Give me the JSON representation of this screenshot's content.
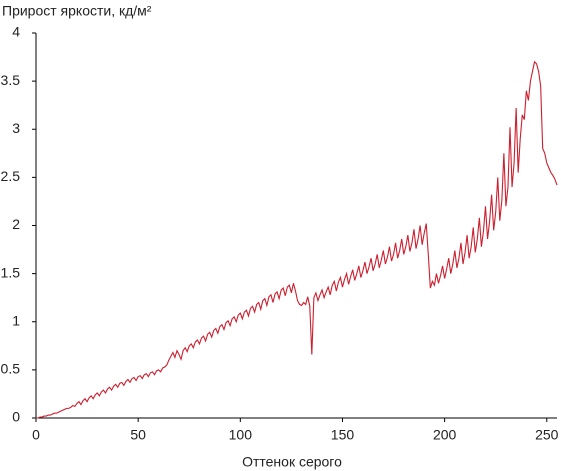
{
  "chart_data": {
    "type": "line",
    "title": "Прирост яркости, кд/м²",
    "x_label": "Оттенок серого",
    "xlim": [
      0,
      255
    ],
    "xticks": [
      0,
      50,
      100,
      150,
      200,
      250
    ],
    "ylim": [
      0,
      4
    ],
    "yticks": [
      0,
      0.5,
      1,
      1.5,
      2,
      2.5,
      3,
      3.5,
      4
    ],
    "grid": false,
    "x": [
      0,
      1,
      2,
      3,
      4,
      5,
      6,
      7,
      8,
      9,
      10,
      11,
      12,
      13,
      14,
      15,
      16,
      17,
      18,
      19,
      20,
      21,
      22,
      23,
      24,
      25,
      26,
      27,
      28,
      29,
      30,
      31,
      32,
      33,
      34,
      35,
      36,
      37,
      38,
      39,
      40,
      41,
      42,
      43,
      44,
      45,
      46,
      47,
      48,
      49,
      50,
      51,
      52,
      53,
      54,
      55,
      56,
      57,
      58,
      59,
      60,
      61,
      62,
      63,
      64,
      65,
      66,
      67,
      68,
      69,
      70,
      71,
      72,
      73,
      74,
      75,
      76,
      77,
      78,
      79,
      80,
      81,
      82,
      83,
      84,
      85,
      86,
      87,
      88,
      89,
      90,
      91,
      92,
      93,
      94,
      95,
      96,
      97,
      98,
      99,
      100,
      101,
      102,
      103,
      104,
      105,
      106,
      107,
      108,
      109,
      110,
      111,
      112,
      113,
      114,
      115,
      116,
      117,
      118,
      119,
      120,
      121,
      122,
      123,
      124,
      125,
      126,
      127,
      128,
      129,
      130,
      131,
      132,
      133,
      134,
      135,
      136,
      137,
      138,
      139,
      140,
      141,
      142,
      143,
      144,
      145,
      146,
      147,
      148,
      149,
      150,
      151,
      152,
      153,
      154,
      155,
      156,
      157,
      158,
      159,
      160,
      161,
      162,
      163,
      164,
      165,
      166,
      167,
      168,
      169,
      170,
      171,
      172,
      173,
      174,
      175,
      176,
      177,
      178,
      179,
      180,
      181,
      182,
      183,
      184,
      185,
      186,
      187,
      188,
      189,
      190,
      191,
      192,
      193,
      194,
      195,
      196,
      197,
      198,
      199,
      200,
      201,
      202,
      203,
      204,
      205,
      206,
      207,
      208,
      209,
      210,
      211,
      212,
      213,
      214,
      215,
      216,
      217,
      218,
      219,
      220,
      221,
      222,
      223,
      224,
      225,
      226,
      227,
      228,
      229,
      230,
      231,
      232,
      233,
      234,
      235,
      236,
      237,
      238,
      239,
      240,
      241,
      242,
      243,
      244,
      245,
      246,
      247,
      248,
      249,
      250,
      251,
      252,
      253,
      254,
      255
    ],
    "series": [
      {
        "color": "#cc1f2f",
        "values": [
          0,
          0,
          0.01,
          0.01,
          0.02,
          0.02,
          0.03,
          0.03,
          0.04,
          0.05,
          0.05,
          0.06,
          0.07,
          0.08,
          0.09,
          0.1,
          0.1,
          0.11,
          0.13,
          0.12,
          0.15,
          0.17,
          0.14,
          0.18,
          0.2,
          0.17,
          0.21,
          0.23,
          0.2,
          0.24,
          0.26,
          0.23,
          0.27,
          0.29,
          0.26,
          0.3,
          0.32,
          0.29,
          0.33,
          0.35,
          0.32,
          0.36,
          0.37,
          0.34,
          0.38,
          0.4,
          0.37,
          0.41,
          0.42,
          0.39,
          0.43,
          0.44,
          0.41,
          0.45,
          0.46,
          0.43,
          0.47,
          0.48,
          0.45,
          0.49,
          0.5,
          0.48,
          0.52,
          0.53,
          0.55,
          0.6,
          0.64,
          0.68,
          0.63,
          0.7,
          0.66,
          0.61,
          0.7,
          0.73,
          0.69,
          0.75,
          0.77,
          0.73,
          0.79,
          0.81,
          0.77,
          0.83,
          0.85,
          0.8,
          0.87,
          0.89,
          0.84,
          0.91,
          0.93,
          0.88,
          0.95,
          0.97,
          0.92,
          0.99,
          1.01,
          0.96,
          1.03,
          1.05,
          1,
          1.07,
          1.09,
          1.03,
          1.1,
          1.12,
          1.06,
          1.14,
          1.16,
          1.1,
          1.18,
          1.2,
          1.13,
          1.22,
          1.24,
          1.17,
          1.26,
          1.28,
          1.2,
          1.29,
          1.31,
          1.24,
          1.33,
          1.35,
          1.27,
          1.36,
          1.38,
          1.3,
          1.4,
          1.32,
          1.22,
          1.18,
          1.17,
          1.2,
          1.18,
          1.26,
          1.16,
          0.66,
          1.25,
          1.3,
          1.22,
          1.28,
          1.33,
          1.25,
          1.31,
          1.36,
          1.28,
          1.38,
          1.42,
          1.32,
          1.41,
          1.46,
          1.36,
          1.44,
          1.5,
          1.39,
          1.47,
          1.54,
          1.43,
          1.5,
          1.58,
          1.46,
          1.53,
          1.62,
          1.5,
          1.57,
          1.66,
          1.53,
          1.6,
          1.7,
          1.56,
          1.64,
          1.74,
          1.6,
          1.67,
          1.78,
          1.63,
          1.7,
          1.82,
          1.66,
          1.74,
          1.86,
          1.7,
          1.78,
          1.9,
          1.73,
          1.82,
          1.96,
          1.76,
          1.86,
          2,
          1.8,
          1.92,
          2.02,
          1.7,
          1.35,
          1.42,
          1.38,
          1.5,
          1.4,
          1.48,
          1.58,
          1.45,
          1.55,
          1.66,
          1.5,
          1.6,
          1.74,
          1.56,
          1.66,
          1.82,
          1.6,
          1.72,
          1.9,
          1.66,
          1.78,
          1.98,
          1.72,
          1.86,
          2.08,
          1.78,
          1.94,
          2.2,
          1.86,
          2.04,
          2.32,
          1.95,
          2.14,
          2.5,
          2.05,
          2.26,
          2.75,
          2.2,
          2.4,
          3.02,
          2.4,
          2.65,
          3.22,
          2.55,
          2.9,
          3.15,
          3.1,
          3.4,
          3.3,
          3.5,
          3.6,
          3.7,
          3.68,
          3.6,
          3.45,
          2.8,
          2.75,
          2.65,
          2.6,
          2.55,
          2.52,
          2.48,
          2.42
        ]
      }
    ]
  }
}
